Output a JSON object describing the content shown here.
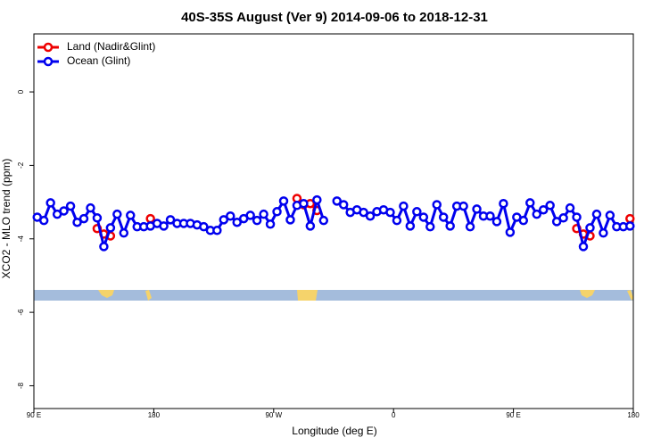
{
  "chart_data": {
    "type": "line",
    "title": "40S-35S August (Ver 9)   2014-09-06 to 2018-12-31",
    "x_label": "Longitude (deg E)",
    "y_label": "XCO2 - MLO trend (ppm)",
    "x": [
      92.5,
      97.5,
      102.5,
      107.5,
      112.5,
      117.5,
      122.5,
      127.5,
      132.5,
      137.5,
      142.5,
      147.5,
      152.5,
      157.5,
      162.5,
      167.5,
      172.5,
      177.5,
      182.5,
      187.5,
      192.5,
      197.5,
      202.5,
      207.5,
      212.5,
      217.5,
      222.5,
      227.5,
      232.5,
      237.5,
      242.5,
      247.5,
      252.5,
      257.5,
      262.5,
      267.5,
      272.5,
      277.5,
      282.5,
      287.5,
      292.5,
      297.5,
      302.5,
      307.5,
      312.5,
      317.5,
      322.5,
      327.5,
      332.5,
      337.5,
      342.5,
      347.5,
      352.5,
      357.5,
      362.5,
      367.5,
      372.5,
      377.5,
      382.5,
      387.5,
      392.5,
      397.5,
      402.5,
      407.5,
      412.5,
      417.5,
      422.5,
      427.5,
      432.5,
      437.5,
      442.5,
      447.5,
      452.5,
      457.5,
      462.5,
      467.5,
      472.5,
      477.5,
      482.5,
      487.5,
      492.5,
      497.5,
      502.5,
      507.5,
      512.5,
      517.5,
      522.5,
      527.5,
      532.5,
      537.5
    ],
    "series": [
      {
        "name": "Land (Nadir&Glint)",
        "color": "#ee0000",
        "values": [
          null,
          null,
          null,
          null,
          null,
          null,
          null,
          null,
          null,
          -3.72,
          -3.87,
          -3.92,
          null,
          null,
          null,
          null,
          null,
          -3.45,
          null,
          null,
          null,
          null,
          null,
          null,
          null,
          null,
          null,
          null,
          null,
          null,
          null,
          null,
          null,
          null,
          null,
          null,
          null,
          null,
          null,
          -2.9,
          -3.07,
          -3.04,
          -3.23,
          null,
          null,
          null,
          null,
          null,
          null,
          null,
          null,
          null,
          null,
          null,
          null,
          null,
          null,
          null,
          null,
          null,
          null,
          null,
          null,
          null,
          null,
          null,
          null,
          null,
          null,
          null,
          null,
          null,
          null,
          null,
          null,
          null,
          null,
          null,
          null,
          null,
          null,
          -3.72,
          -3.87,
          -3.92,
          null,
          null,
          null,
          null,
          null,
          -3.45
        ]
      },
      {
        "name": "Ocean (Glint)",
        "color": "#0000ee",
        "values": [
          -3.41,
          -3.5,
          -3.02,
          -3.33,
          -3.24,
          -3.11,
          -3.55,
          -3.45,
          -3.16,
          -3.43,
          -4.21,
          -3.7,
          -3.33,
          -3.84,
          -3.36,
          -3.67,
          -3.67,
          -3.65,
          -3.58,
          -3.65,
          -3.48,
          -3.58,
          -3.58,
          -3.58,
          -3.62,
          -3.67,
          -3.77,
          -3.77,
          -3.48,
          -3.38,
          -3.55,
          -3.45,
          -3.36,
          -3.5,
          -3.33,
          -3.6,
          -3.26,
          -2.97,
          -3.48,
          -3.09,
          -3.04,
          -3.65,
          -2.94,
          -3.5,
          null,
          -2.97,
          -3.07,
          -3.28,
          -3.21,
          -3.28,
          -3.38,
          -3.26,
          -3.21,
          -3.28,
          -3.5,
          -3.11,
          -3.65,
          -3.26,
          -3.41,
          -3.67,
          -3.07,
          -3.41,
          -3.65,
          -3.11,
          -3.11,
          -3.67,
          -3.19,
          -3.38,
          -3.38,
          -3.53,
          -3.04,
          -3.82,
          -3.41,
          -3.5,
          -3.02,
          -3.33,
          -3.21,
          -3.09,
          -3.53,
          -3.43,
          -3.16,
          -3.41,
          -4.21,
          -3.7,
          -3.33,
          -3.84,
          -3.36,
          -3.67,
          -3.67,
          -3.65
        ]
      }
    ],
    "xlim": [
      90,
      540
    ],
    "xticks": [
      {
        "value": 90,
        "label": "90 E"
      },
      180,
      {
        "value": 270,
        "label": "90 W"
      },
      {
        "value": 360,
        "label": "0"
      },
      {
        "value": 450,
        "label": "90 E"
      },
      {
        "value": 540,
        "label": "180"
      }
    ],
    "ylim": [
      -8.62,
      1.58
    ],
    "yticks": [
      0,
      -2,
      -4,
      -6,
      -8
    ],
    "legend": "upper-left"
  }
}
